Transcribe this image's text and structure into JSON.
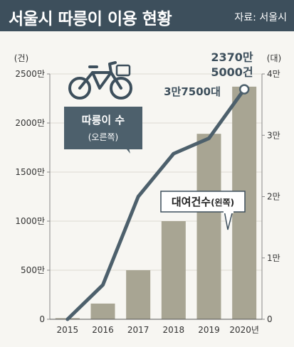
{
  "header": {
    "title": "서울시 따릉이 이용 현황",
    "source": "자료: 서울시"
  },
  "colors": {
    "header_bg": "#3d4f5c",
    "bar": "#a8a593",
    "line": "#4d606c",
    "background": "#f7f6f2"
  },
  "icons": [
    "bicycle-icon"
  ],
  "chart_data": {
    "type": "bar+line",
    "categories": [
      "2015",
      "2016",
      "2017",
      "2018",
      "2019",
      "2020년"
    ],
    "left_axis": {
      "unit_label": "(건)",
      "ylim": [
        0,
        25000000
      ],
      "ticks": [
        0,
        5000000,
        10000000,
        15000000,
        20000000,
        25000000
      ],
      "tick_labels": [
        "0",
        "500만",
        "1000만",
        "1500만",
        "2000만",
        "2500만"
      ]
    },
    "right_axis": {
      "unit_label": "(대)",
      "ylim": [
        0,
        40000
      ],
      "ticks": [
        0,
        10000,
        20000,
        30000,
        40000
      ],
      "tick_labels": [
        "0",
        "1만",
        "2만",
        "3만",
        "4만"
      ]
    },
    "series": [
      {
        "name": "대여건수",
        "name_suffix": "(왼쪽)",
        "type": "bar",
        "axis": "left",
        "values": [
          110000,
          1600000,
          5000000,
          10000000,
          18900000,
          23705000
        ]
      },
      {
        "name": "따릉이 수",
        "name_suffix": "(오른쪽)",
        "type": "line",
        "axis": "right",
        "values": [
          0,
          5600,
          20000,
          27000,
          29500,
          37500
        ]
      }
    ],
    "annotations": {
      "bar_final_line1": "2370만",
      "bar_final_line2": "5000건",
      "line_final": "3만7500대"
    }
  }
}
